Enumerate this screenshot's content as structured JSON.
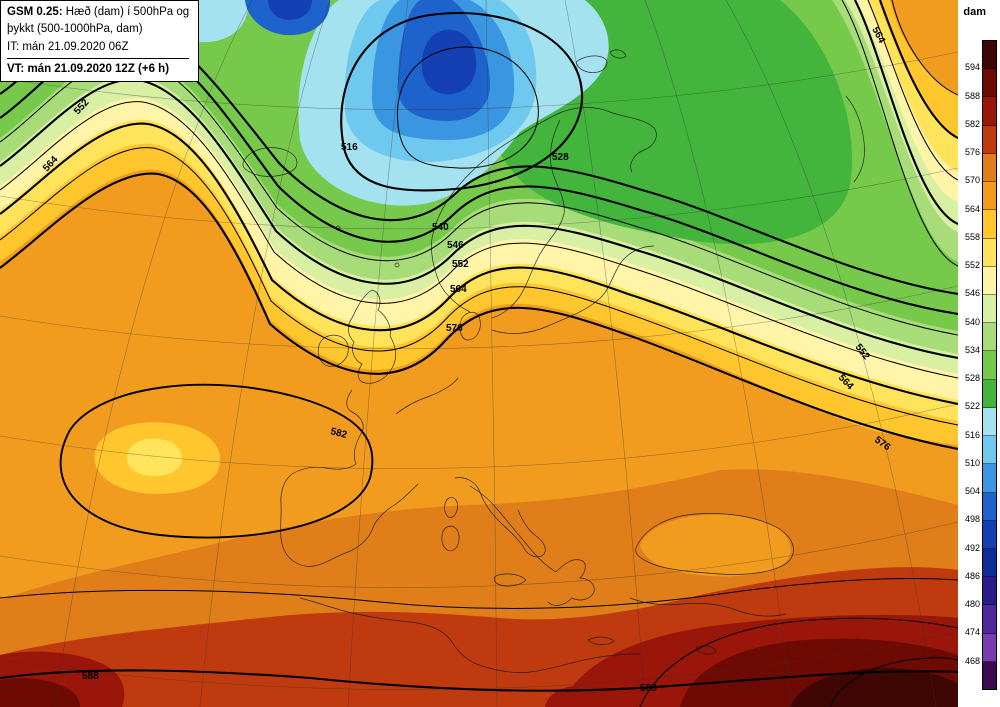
{
  "header": {
    "line1_bold": "GSM 0.25:",
    "line1_rest": " Hæð (dam) í 500hPa og",
    "line2": "þykkt (500-1000hPa, dam)",
    "line3_label": "IT:",
    "line3_rest": " mán 21.09.2020 06Z",
    "line4_label": "VT:",
    "line4_rest": " mán 21.09.2020 12Z (+6 h)"
  },
  "legend": {
    "title": "dam",
    "labels": [
      "594",
      "588",
      "582",
      "576",
      "570",
      "564",
      "558",
      "552",
      "546",
      "540",
      "534",
      "528",
      "522",
      "516",
      "510",
      "504",
      "498",
      "492",
      "486",
      "480",
      "474",
      "468"
    ],
    "cells": [
      "#3f0703",
      "#6e0a04",
      "#9a150a",
      "#bf3a0e",
      "#e07e1a",
      "#f29c1f",
      "#ffc62e",
      "#ffe35a",
      "#fff4a8",
      "#d8efa4",
      "#a8dc78",
      "#77c94b",
      "#43b43c",
      "#a5e2f0",
      "#6fc8ee",
      "#3a96e0",
      "#1e62cc",
      "#1440b4",
      "#0e2b96",
      "#2a1a8c",
      "#50289c",
      "#7a3cb0",
      "#3c0a50"
    ]
  },
  "map": {
    "colors": {
      "base_orange": "#f29c1f",
      "orange2": "#e07e1a",
      "orange3": "#bf3a0e",
      "red": "#9a150a",
      "darkred": "#6e0a04",
      "darkest": "#3f0703",
      "gold": "#ffc62e",
      "yellow": "#ffe35a",
      "cream": "#fff4a8",
      "palegreen": "#d8efa4",
      "green1": "#a8dc78",
      "green2": "#77c94b",
      "green3": "#43b43c",
      "cyan": "#a5e2f0",
      "lightblue": "#6fc8ee",
      "blue": "#3a96e0",
      "dblue": "#1e62cc",
      "navy": "#1440b4",
      "deepnavy": "#0e2b96"
    },
    "contour_labels": [
      "516",
      "540",
      "546",
      "552",
      "564",
      "576",
      "552",
      "564",
      "528",
      "552",
      "564",
      "576",
      "564",
      "588",
      "588",
      "582"
    ]
  },
  "chart_data": {
    "type": "heatmap",
    "title": "GSM 0.25: Hæð (dam) í 500hPa og þykkt (500-1000hPa, dam)",
    "init_time": "mán 21.09.2020 06Z",
    "valid_time": "mán 21.09.2020 12Z (+6 h)",
    "legend_title": "dam",
    "legend_values": [
      594,
      588,
      582,
      576,
      570,
      564,
      558,
      552,
      546,
      540,
      534,
      528,
      522,
      516,
      510,
      504,
      498,
      492,
      486,
      480,
      474,
      468
    ],
    "contour_interval_dam": 6,
    "labeled_contour_values": [
      516,
      528,
      540,
      546,
      552,
      564,
      576,
      582,
      588
    ]
  }
}
